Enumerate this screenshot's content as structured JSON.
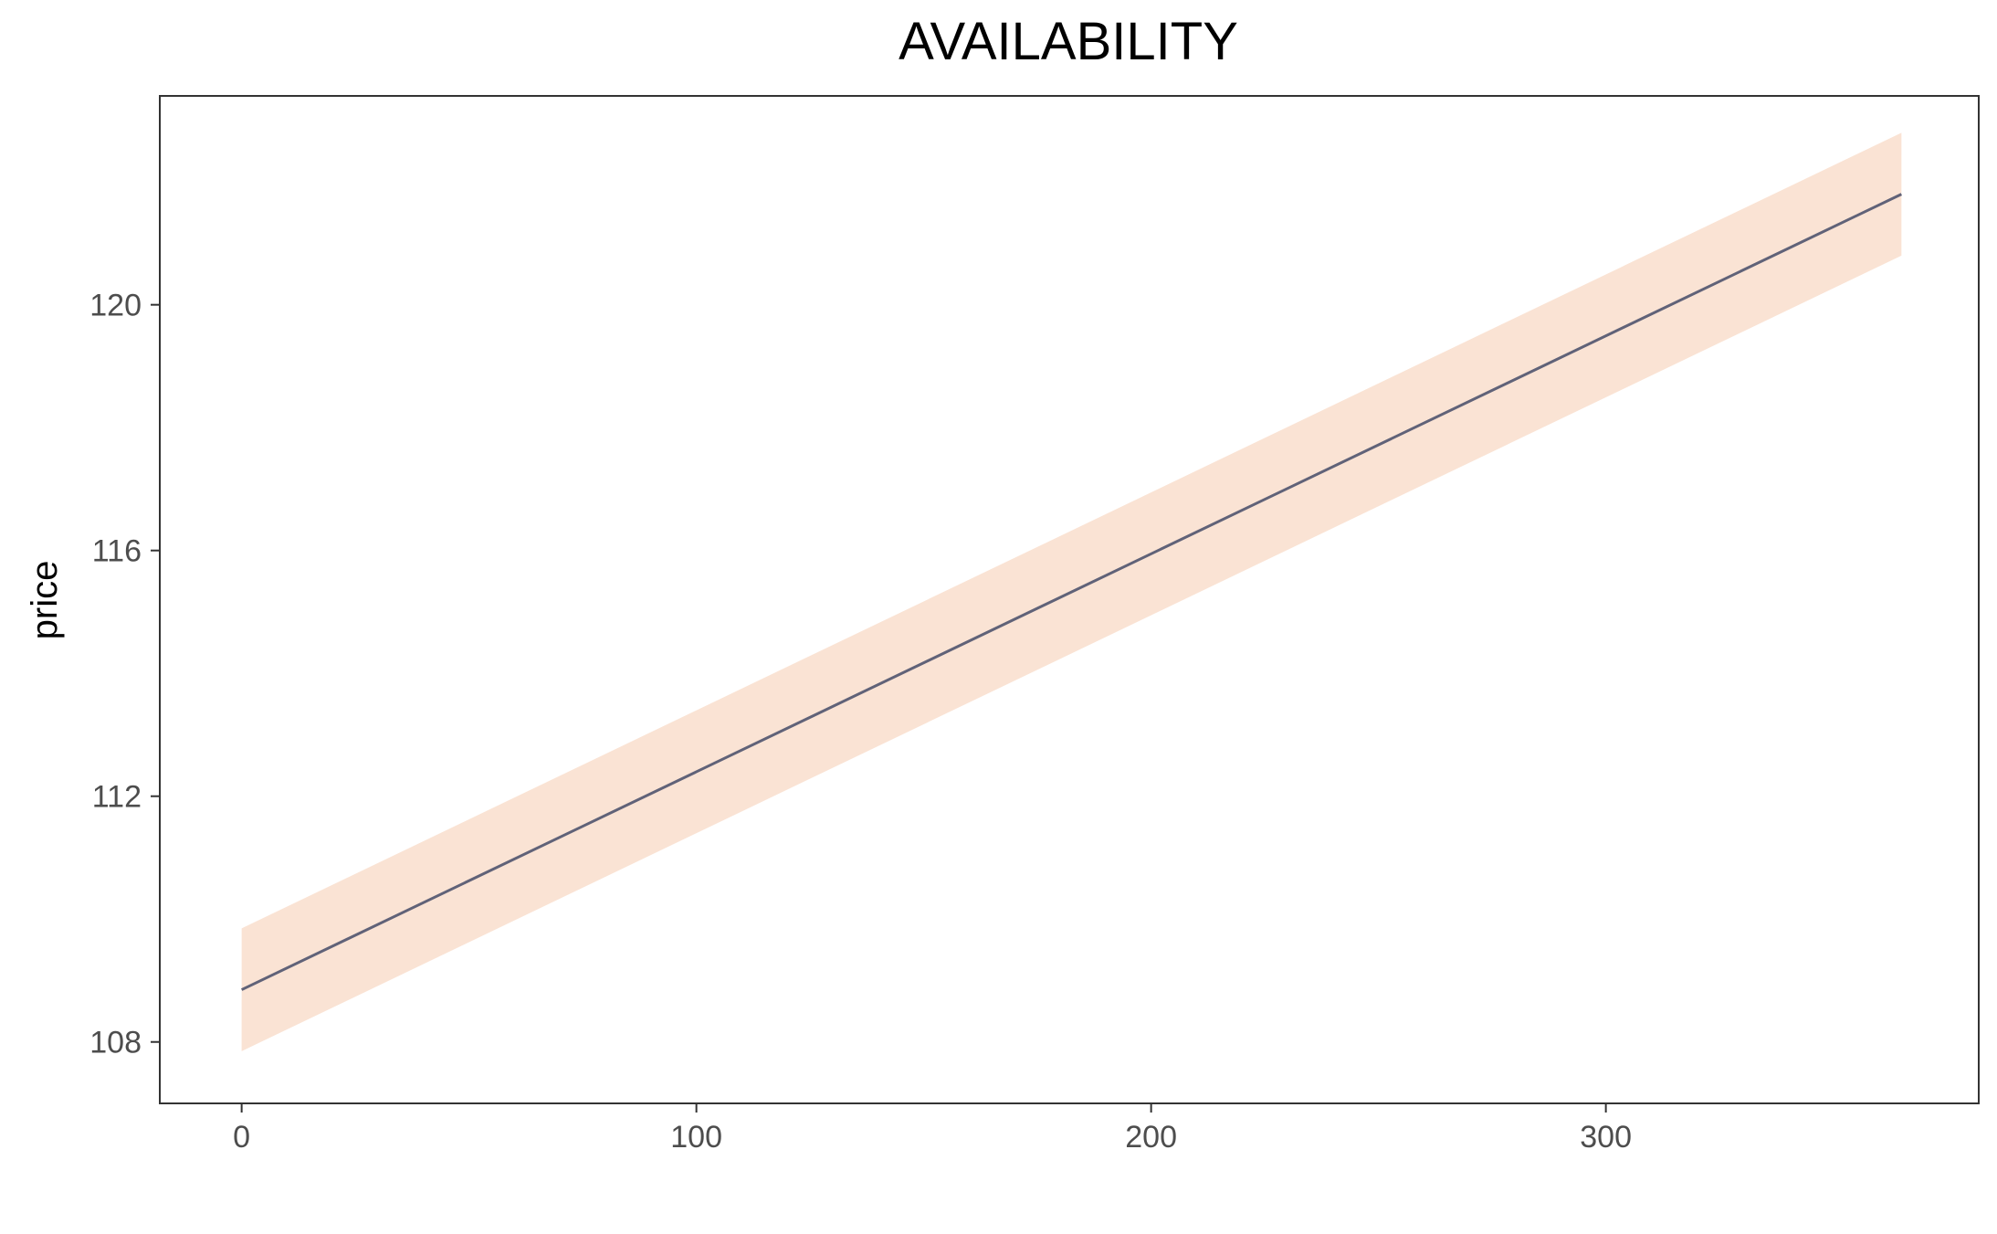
{
  "chart_data": {
    "type": "line",
    "title": "AVAILABILITY",
    "xlabel": "",
    "ylabel": "price",
    "xlim": [
      -18,
      382
    ],
    "ylim": [
      107.0,
      123.4
    ],
    "x_ticks": [
      0,
      100,
      200,
      300
    ],
    "y_ticks": [
      108,
      112,
      116,
      120
    ],
    "grid": false,
    "legend": "none",
    "series": [
      {
        "x": [
          0,
          365
        ],
        "y": [
          108.85,
          121.8
        ],
        "ymin": [
          107.85,
          120.8
        ],
        "ymax": [
          109.85,
          122.8
        ],
        "line_color": "#606278",
        "band_color": "#fae3d4"
      }
    ]
  }
}
